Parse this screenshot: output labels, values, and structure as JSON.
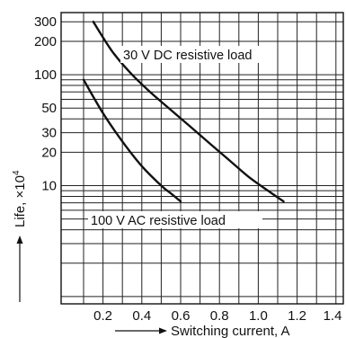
{
  "chart_data": {
    "type": "line",
    "title": "",
    "xlabel": "Switching current, A",
    "ylabel": "Life, ×10",
    "ylabel_exponent": "4",
    "x_scale": "linear",
    "y_scale": "log",
    "xlim": [
      0.05,
      1.45
    ],
    "ylim": [
      0.75,
      400
    ],
    "grid": true,
    "x_ticks": [
      {
        "value": 0.2,
        "label": "0.2"
      },
      {
        "value": 0.4,
        "label": "0.4"
      },
      {
        "value": 0.6,
        "label": "0.6"
      },
      {
        "value": 0.8,
        "label": "0.8"
      },
      {
        "value": 1.0,
        "label": "1.0"
      },
      {
        "value": 1.2,
        "label": "1.2"
      },
      {
        "value": 1.4,
        "label": "1.4"
      }
    ],
    "y_ticks": [
      {
        "value": 10,
        "label": "10"
      },
      {
        "value": 20,
        "label": "20"
      },
      {
        "value": 30,
        "label": "30"
      },
      {
        "value": 50,
        "label": "50"
      },
      {
        "value": 100,
        "label": "100"
      },
      {
        "value": 200,
        "label": "200"
      },
      {
        "value": 300,
        "label": "300"
      }
    ],
    "x_grid": [
      0.1,
      0.2,
      0.3,
      0.4,
      0.5,
      0.6,
      0.7,
      0.8,
      0.9,
      1.0,
      1.1,
      1.2,
      1.3,
      1.4
    ],
    "y_grid": [
      1,
      2,
      3,
      4,
      5,
      6,
      7,
      8,
      9,
      10,
      20,
      30,
      40,
      50,
      60,
      70,
      80,
      90,
      100,
      200,
      300
    ],
    "series": [
      {
        "name": "30 V DC resistive load",
        "x": [
          0.15,
          0.25,
          0.35,
          0.45,
          0.55,
          0.65,
          0.75,
          0.85,
          0.95,
          1.05,
          1.13
        ],
        "y": [
          300,
          160,
          100,
          68,
          48,
          34,
          24,
          17,
          12,
          9,
          7.2
        ]
      },
      {
        "name": "100 V AC resistive load",
        "x": [
          0.1,
          0.2,
          0.3,
          0.4,
          0.5,
          0.55,
          0.6
        ],
        "y": [
          90,
          45,
          25,
          15,
          10,
          8.5,
          7.2
        ]
      }
    ]
  }
}
